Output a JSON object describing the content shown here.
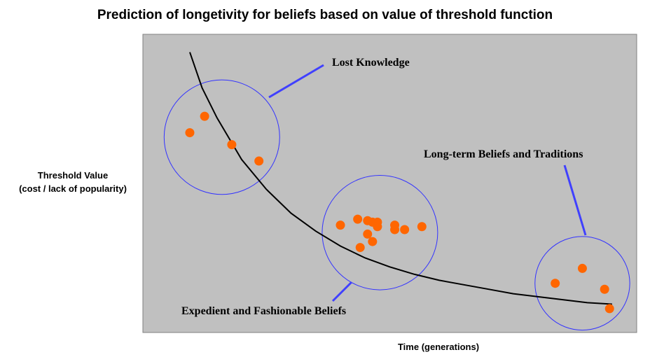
{
  "chart_data": {
    "type": "scatter",
    "title": "Prediction of longetivity for beliefs based on value of threshold function",
    "xlabel": "Time (generations)",
    "ylabel_line1": "Threshold Value",
    "ylabel_line2": "(cost / lack of popularity)",
    "xlim": [
      0,
      100
    ],
    "ylim": [
      0,
      100
    ],
    "grid": false,
    "background_color": "#c0c0c0",
    "point_color": "#ff6600",
    "curve_color": "#000000",
    "circle_color": "#3333ff",
    "pointer_color": "#4040ff",
    "curve": {
      "x": [
        9.5,
        12,
        15,
        20,
        25,
        30,
        35,
        40,
        45,
        50,
        55,
        60,
        65,
        70,
        75,
        80,
        85,
        90,
        95
      ],
      "y": [
        94,
        82,
        72,
        58,
        48,
        40,
        34,
        29,
        25,
        22,
        19.5,
        17.5,
        16,
        14.5,
        13,
        12,
        11,
        10,
        9.5
      ]
    },
    "series": [
      {
        "x": [
          9.5,
          12.5,
          18,
          23.5
        ],
        "y": [
          67,
          72.5,
          63,
          57.5
        ]
      },
      {
        "x": [
          40,
          43.5,
          45.5,
          46.5,
          47.5,
          47.5,
          51,
          51,
          53,
          56.5,
          45.5,
          46.5,
          44
        ],
        "y": [
          36,
          38,
          37.5,
          37,
          37,
          35.5,
          36,
          34.5,
          34.5,
          35.5,
          33,
          30.5,
          28.5
        ]
      },
      {
        "x": [
          83.5,
          89,
          93.5,
          94.5
        ],
        "y": [
          16.5,
          21.5,
          14.5,
          8
        ]
      }
    ],
    "groups": [
      {
        "label": "Lost Knowledge",
        "center": [
          16,
          65.5
        ],
        "radius_x": 11.7,
        "radius_y": 19.2
      },
      {
        "label": "Expedient and Fashionable Beliefs",
        "center": [
          48,
          33.5
        ],
        "radius_x": 11.7,
        "radius_y": 19.2
      },
      {
        "label": "Long-term Beliefs and Traditions",
        "center": [
          89,
          16.5
        ],
        "radius_x": 9.6,
        "radius_y": 15.7
      }
    ]
  }
}
